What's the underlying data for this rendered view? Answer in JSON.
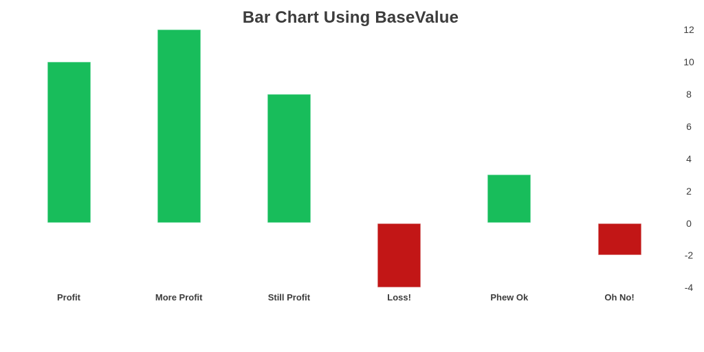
{
  "chart_data": {
    "type": "bar",
    "title": "Bar Chart Using BaseValue",
    "categories": [
      "Profit",
      "More Profit",
      "Still Profit",
      "Loss!",
      "Phew Ok",
      "Oh No!"
    ],
    "values": [
      10,
      12,
      8,
      -4,
      3,
      -2
    ],
    "base_value": 0,
    "ylim": [
      -4,
      12
    ],
    "y_ticks": [
      12,
      10,
      8,
      6,
      4,
      2,
      0,
      -2,
      -4
    ],
    "y_axis_position": "right",
    "grid": false,
    "legend": false,
    "xlabel": "",
    "ylabel": "",
    "colors": {
      "positive": "#18bd5b",
      "positive_stroke": "#6fd99e",
      "negative": "#c21616",
      "negative_stroke": "#d97a7a",
      "title_text": "#3c3c3c",
      "label_text": "#3c3c3c"
    }
  }
}
